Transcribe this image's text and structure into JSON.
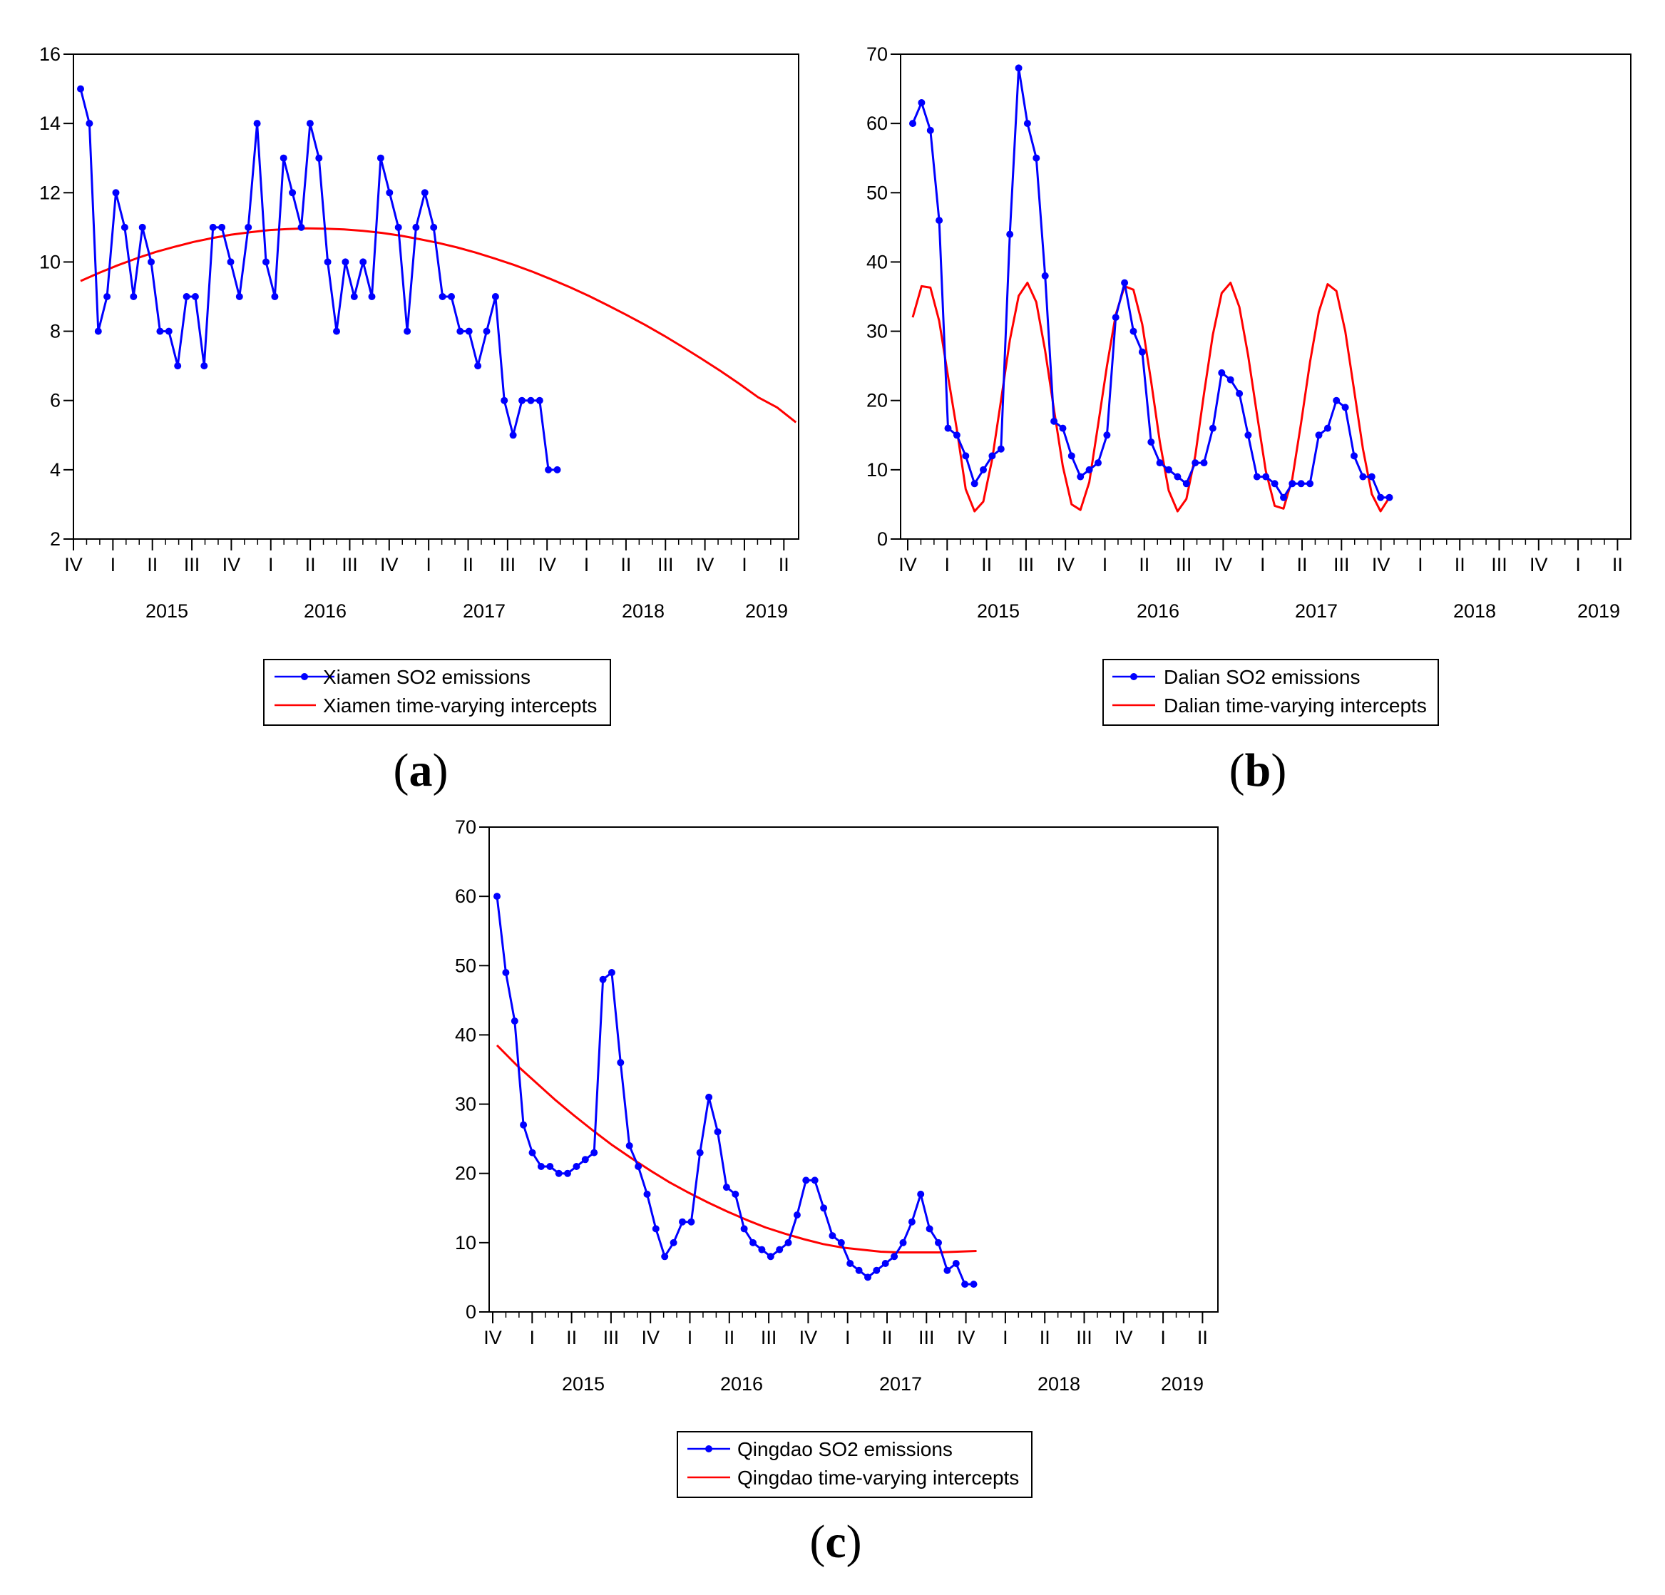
{
  "colors": {
    "observed": "#0000ff",
    "trend": "#ff0000",
    "axis": "#000000"
  },
  "quarter_ticks": [
    "IV",
    "I",
    "II",
    "III",
    "IV",
    "I",
    "II",
    "III",
    "IV",
    "I",
    "II",
    "III",
    "IV",
    "I",
    "II",
    "III",
    "IV",
    "I",
    "II"
  ],
  "chart_data": [
    {
      "id": "a",
      "type": "line",
      "panel_label": "a",
      "ylim": [
        2,
        16
      ],
      "yticks": [
        2,
        4,
        6,
        8,
        10,
        12,
        14,
        16
      ],
      "years": [
        "2015",
        "2016",
        "2017",
        "2018",
        "2019"
      ],
      "series": [
        {
          "name": "Xiamen SO2 emissions",
          "style": "line-markers",
          "values": [
            15,
            14,
            8,
            9,
            12,
            11,
            9,
            11,
            10,
            8,
            8,
            7,
            9,
            9,
            7,
            11,
            11,
            10,
            9,
            11,
            14,
            10,
            9,
            13,
            12,
            11,
            14,
            13,
            10,
            8,
            10,
            9,
            10,
            9,
            13,
            12,
            11,
            8,
            11,
            12,
            11,
            9,
            9,
            8,
            8,
            7,
            8,
            9,
            6,
            5,
            6,
            6,
            6,
            4,
            4
          ]
        },
        {
          "name": "Xiamen time-varying intercepts",
          "style": "line",
          "values": [
            9.45,
            9.69,
            9.91,
            10.11,
            10.29,
            10.44,
            10.58,
            10.69,
            10.79,
            10.86,
            10.92,
            10.95,
            10.97,
            10.96,
            10.94,
            10.9,
            10.84,
            10.76,
            10.66,
            10.55,
            10.42,
            10.27,
            10.1,
            9.92,
            9.72,
            9.5,
            9.27,
            9.02,
            8.75,
            8.47,
            8.18,
            7.87,
            7.54,
            7.2,
            6.85,
            6.48,
            6.09,
            5.8,
            5.37
          ]
        }
      ]
    },
    {
      "id": "b",
      "type": "line",
      "panel_label": "b",
      "ylim": [
        0,
        70
      ],
      "yticks": [
        0,
        10,
        20,
        30,
        40,
        50,
        60,
        70
      ],
      "years": [
        "2015",
        "2016",
        "2017",
        "2018",
        "2019"
      ],
      "series": [
        {
          "name": "Dalian SO2 emissions",
          "style": "line-markers",
          "values": [
            60,
            63,
            59,
            46,
            16,
            15,
            12,
            8,
            10,
            12,
            13,
            44,
            68,
            60,
            55,
            38,
            17,
            16,
            12,
            9,
            10,
            11,
            15,
            32,
            37,
            30,
            27,
            14,
            11,
            10,
            9,
            8,
            11,
            11,
            16,
            24,
            23,
            21,
            15,
            9,
            9,
            8,
            6,
            8,
            8,
            8,
            15,
            16,
            20,
            19,
            12,
            9,
            9,
            6,
            6
          ]
        },
        {
          "name": "Dalian time-varying intercepts",
          "style": "line",
          "values": [
            32,
            36.5,
            36.3,
            31.5,
            23.5,
            15.8,
            7.2,
            4,
            5.4,
            11.5,
            20,
            28.7,
            35.1,
            37,
            34.2,
            27.2,
            18.7,
            10.5,
            5,
            4.2,
            8.2,
            16.5,
            25,
            32.4,
            36.5,
            36,
            31,
            22.8,
            14,
            7,
            4,
            5.8,
            12,
            21,
            29.5,
            35.5,
            37,
            33.5,
            26.5,
            18,
            9.8,
            4.8,
            4.4,
            8.7,
            16.8,
            25.5,
            32.8,
            36.8,
            35.8,
            30,
            21.5,
            13,
            6.5,
            4,
            6
          ]
        }
      ]
    },
    {
      "id": "c",
      "type": "line",
      "panel_label": "c",
      "ylim": [
        0,
        70
      ],
      "yticks": [
        0,
        10,
        20,
        30,
        40,
        50,
        60,
        70
      ],
      "years": [
        "2015",
        "2016",
        "2017",
        "2018",
        "2019"
      ],
      "series": [
        {
          "name": "Qingdao SO2 emissions",
          "style": "line-markers",
          "values": [
            60,
            49,
            42,
            27,
            23,
            21,
            21,
            20,
            20,
            21,
            22,
            23,
            48,
            49,
            36,
            24,
            21,
            17,
            12,
            8,
            10,
            13,
            13,
            23,
            31,
            26,
            18,
            17,
            12,
            10,
            9,
            8,
            9,
            10,
            14,
            19,
            19,
            15,
            11,
            10,
            7,
            6,
            5,
            6,
            7,
            8,
            10,
            13,
            17,
            12,
            10,
            6,
            7,
            4,
            4
          ]
        },
        {
          "name": "Qingdao time-varying intercepts",
          "style": "line",
          "values": [
            38.5,
            35.7,
            33.2,
            30.7,
            28.4,
            26.2,
            24.1,
            22.2,
            20.4,
            18.7,
            17.2,
            15.8,
            14.5,
            13.3,
            12.2,
            11.3,
            10.5,
            9.8,
            9.3,
            9,
            8.7,
            8.6,
            8.6,
            8.6,
            8.7,
            8.8
          ]
        }
      ]
    }
  ]
}
